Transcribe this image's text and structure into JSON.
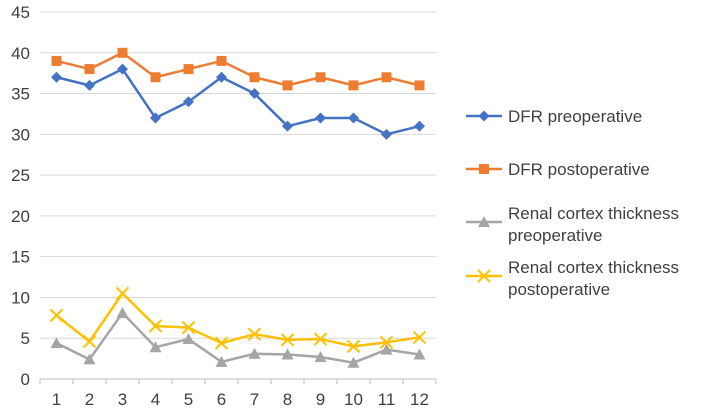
{
  "chart_data": {
    "type": "line",
    "title": "",
    "xlabel": "",
    "ylabel": "",
    "categories": [
      "1",
      "2",
      "3",
      "4",
      "5",
      "6",
      "7",
      "8",
      "9",
      "10",
      "11",
      "12"
    ],
    "ylim": [
      0,
      45
    ],
    "yticks": [
      "0",
      "5",
      "10",
      "15",
      "20",
      "25",
      "30",
      "35",
      "40",
      "45"
    ],
    "grid": "horizontal",
    "legend_position": "right",
    "series": [
      {
        "name": "DFR preoperative",
        "legend_lines": [
          "DFR preoperative"
        ],
        "color": "#4472C4",
        "marker": "diamond",
        "values": [
          37,
          36,
          38,
          32,
          34,
          37,
          35,
          31,
          32,
          32,
          30,
          31
        ]
      },
      {
        "name": "DFR postoperative",
        "legend_lines": [
          "DFR postoperative"
        ],
        "color": "#ED7D31",
        "marker": "square",
        "values": [
          39,
          38,
          40,
          37,
          38,
          39,
          37,
          36,
          37,
          36,
          37,
          36
        ]
      },
      {
        "name": "Renal cortex thickness preoperative",
        "legend_lines": [
          "Renal cortex thickness",
          "preoperative"
        ],
        "color": "#A5A5A5",
        "marker": "triangle",
        "values": [
          4.4,
          2.4,
          8.1,
          3.9,
          4.9,
          2.1,
          3.1,
          3.0,
          2.7,
          2.0,
          3.6,
          3.0
        ]
      },
      {
        "name": "Renal cortex thickness postoperative",
        "legend_lines": [
          "Renal cortex thickness",
          "postoperative"
        ],
        "color": "#FFC000",
        "marker": "x",
        "values": [
          7.8,
          4.6,
          10.5,
          6.5,
          6.3,
          4.4,
          5.5,
          4.8,
          4.9,
          4.0,
          4.5,
          5.1
        ]
      }
    ]
  }
}
